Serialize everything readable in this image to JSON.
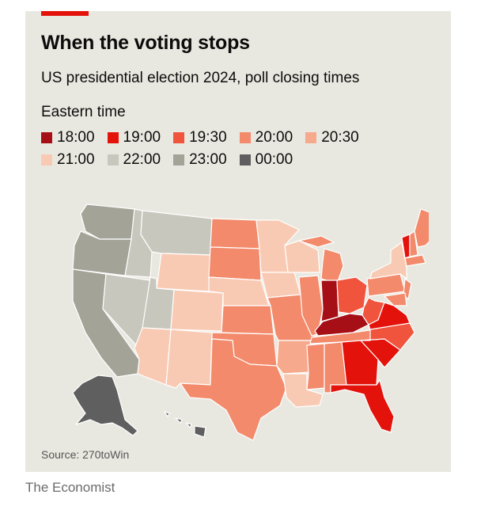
{
  "header": {
    "title": "When the voting stops",
    "subtitle": "US presidential election 2024, poll closing times"
  },
  "legend": {
    "title": "Eastern time",
    "rows": [
      [
        {
          "label": "18:00",
          "color": "#a50f15"
        },
        {
          "label": "19:00",
          "color": "#e3120b"
        },
        {
          "label": "19:30",
          "color": "#f0543d"
        },
        {
          "label": "20:00",
          "color": "#f28a6b"
        },
        {
          "label": "20:30",
          "color": "#f6a98c"
        }
      ],
      [
        {
          "label": "21:00",
          "color": "#f9cab3"
        },
        {
          "label": "22:00",
          "color": "#c7c7bd"
        },
        {
          "label": "23:00",
          "color": "#a3a398"
        },
        {
          "label": "00:00",
          "color": "#5f5f5f"
        }
      ]
    ]
  },
  "map": {
    "colors": {
      "t1800": "#a50f15",
      "t1900": "#e3120b",
      "t1930": "#f0543d",
      "t2000": "#f28a6b",
      "t2030": "#f6a98c",
      "t2100": "#f9cab3",
      "t2200": "#c7c7bd",
      "t2300": "#a3a398",
      "t0000": "#5f5f5f"
    },
    "states": [
      {
        "id": "WA",
        "time": "t2300"
      },
      {
        "id": "OR",
        "time": "t2300"
      },
      {
        "id": "CA",
        "time": "t2300"
      },
      {
        "id": "ID",
        "time": "t2200"
      },
      {
        "id": "NV",
        "time": "t2200"
      },
      {
        "id": "UT",
        "time": "t2200"
      },
      {
        "id": "MT",
        "time": "t2200"
      },
      {
        "id": "AZ",
        "time": "t2100"
      },
      {
        "id": "WY",
        "time": "t2100"
      },
      {
        "id": "CO",
        "time": "t2100"
      },
      {
        "id": "NM",
        "time": "t2100"
      },
      {
        "id": "ND",
        "time": "t2000"
      },
      {
        "id": "SD",
        "time": "t2000"
      },
      {
        "id": "NE",
        "time": "t2100"
      },
      {
        "id": "KS",
        "time": "t2000"
      },
      {
        "id": "OK",
        "time": "t2000"
      },
      {
        "id": "TX",
        "time": "t2000"
      },
      {
        "id": "MN",
        "time": "t2100"
      },
      {
        "id": "IA",
        "time": "t2100"
      },
      {
        "id": "MO",
        "time": "t2000"
      },
      {
        "id": "AR",
        "time": "t2030"
      },
      {
        "id": "LA",
        "time": "t2100"
      },
      {
        "id": "WI",
        "time": "t2100"
      },
      {
        "id": "IL",
        "time": "t2000"
      },
      {
        "id": "MI",
        "time": "t2000"
      },
      {
        "id": "IN",
        "time": "t1800"
      },
      {
        "id": "KY",
        "time": "t1800"
      },
      {
        "id": "TN",
        "time": "t2000"
      },
      {
        "id": "MS",
        "time": "t2000"
      },
      {
        "id": "AL",
        "time": "t2000"
      },
      {
        "id": "OH",
        "time": "t1930"
      },
      {
        "id": "WV",
        "time": "t1930"
      },
      {
        "id": "GA",
        "time": "t1900"
      },
      {
        "id": "FL",
        "time": "t1900"
      },
      {
        "id": "SC",
        "time": "t1900"
      },
      {
        "id": "NC",
        "time": "t1930"
      },
      {
        "id": "VA",
        "time": "t1900"
      },
      {
        "id": "PA",
        "time": "t2000"
      },
      {
        "id": "NY",
        "time": "t2100"
      },
      {
        "id": "ME",
        "time": "t2000"
      },
      {
        "id": "VT",
        "time": "t1900"
      },
      {
        "id": "NH",
        "time": "t2000"
      },
      {
        "id": "MA",
        "time": "t2000"
      },
      {
        "id": "NJ",
        "time": "t2000"
      },
      {
        "id": "MD",
        "time": "t2000"
      },
      {
        "id": "AK",
        "time": "t0000"
      },
      {
        "id": "HI",
        "time": "t0000"
      }
    ]
  },
  "footer": {
    "source": "Source: 270toWin",
    "brand": "The Economist"
  }
}
